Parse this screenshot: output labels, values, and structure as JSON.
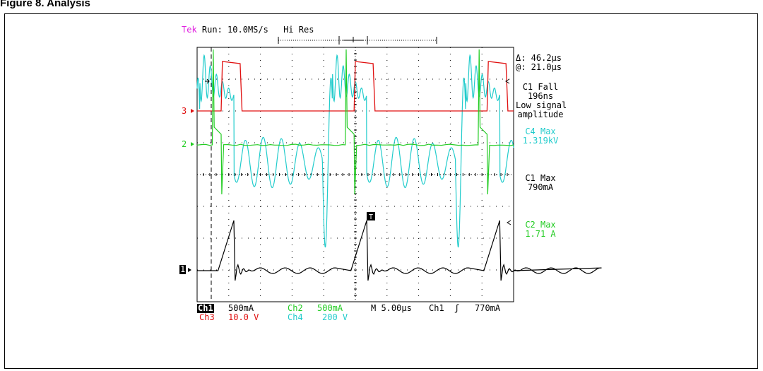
{
  "figure": {
    "title": "Figure 8. Analysis"
  },
  "scope": {
    "brand": "Tek",
    "status": "Run: 10.0MS/s",
    "acq_mode": "Hi Res",
    "cursor": {
      "delta": "Δ: 46.2µs",
      "at": "@: 21.0µs"
    },
    "measurements": [
      {
        "label": "C1 Fall",
        "value": "196ns",
        "note1": "Low signal",
        "note2": "amplitude",
        "channel": "ch1"
      },
      {
        "label": "C4 Max",
        "value": "1.319kV",
        "channel": "ch4"
      },
      {
        "label": "C1 Max",
        "value": "790mA",
        "channel": "ch1"
      },
      {
        "label": "C2 Max",
        "value": "1.71 A",
        "channel": "ch2"
      }
    ],
    "channels": [
      {
        "id": "ch1",
        "label": "Ch1",
        "scale": "500mA",
        "marker": "1",
        "color": "#000000"
      },
      {
        "id": "ch2",
        "label": "Ch2",
        "scale": "500mA",
        "marker": "2",
        "color": "#22cc22"
      },
      {
        "id": "ch3",
        "label": "Ch3",
        "scale": "10.0 V",
        "marker": "3",
        "color": "#e01010"
      },
      {
        "id": "ch4",
        "label": "Ch4",
        "scale": "200 V",
        "color": "#22cccc"
      }
    ],
    "timebase": "M 5.00µs",
    "trigger": {
      "source": "Ch1",
      "slope": "ʃ",
      "level": "770mA",
      "marker": "T"
    },
    "brand_color": "#e020e0"
  },
  "chart_data": {
    "type": "line",
    "title": "",
    "xlabel": "",
    "ylabel": "",
    "grid": true,
    "x_unit": "µs",
    "x_range": [
      0,
      50
    ],
    "period_us": 21.0,
    "series": [
      {
        "name": "Ch1",
        "description_points": [
          [
            3.3,
            0
          ],
          [
            5.8,
            790
          ],
          [
            6.0,
            0
          ]
        ]
      },
      {
        "name": "Ch2",
        "description_points": [
          [
            5.0,
            0
          ],
          [
            5.3,
            1710
          ],
          [
            6.2,
            0
          ]
        ]
      },
      {
        "name": "Ch3",
        "description_points": [
          [
            5.0,
            0
          ],
          [
            5.3,
            26
          ],
          [
            7.5,
            0
          ]
        ]
      },
      {
        "name": "Ch4",
        "description_points": [
          [
            6.0,
            1319
          ],
          [
            21.0,
            -400
          ]
        ]
      }
    ]
  }
}
